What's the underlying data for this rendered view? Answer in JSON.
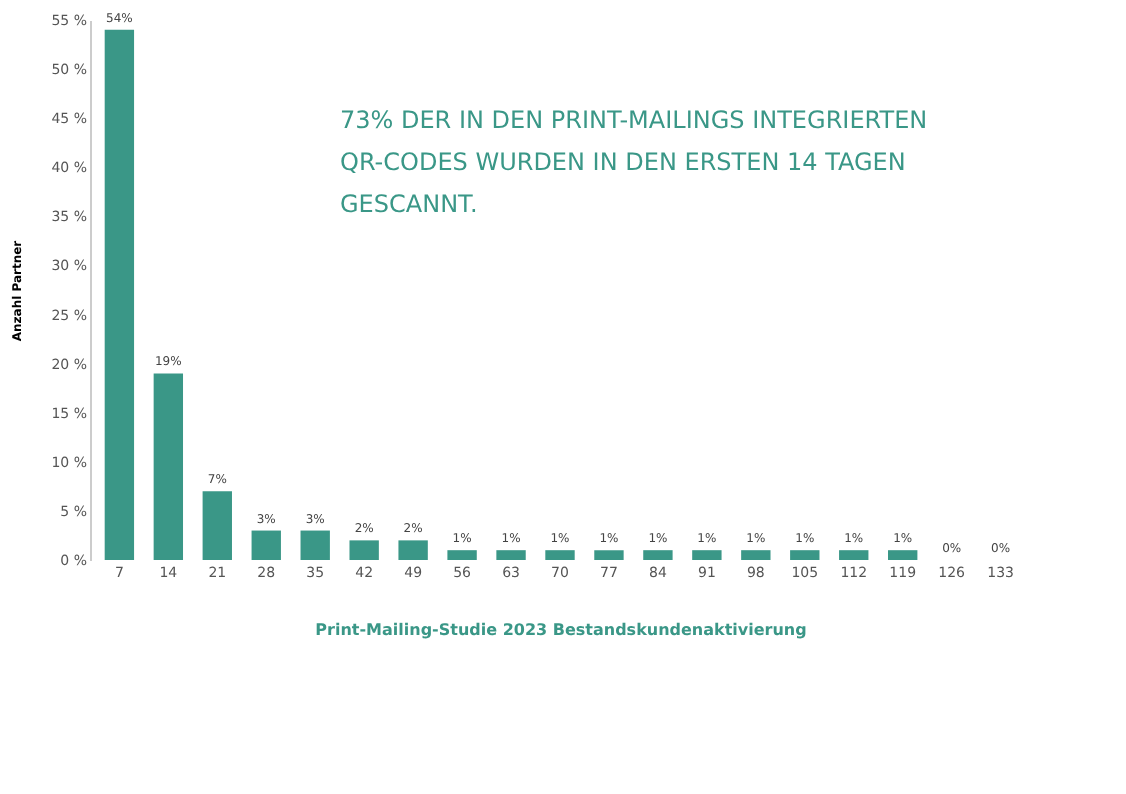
{
  "chart_data": {
    "type": "bar",
    "xlabel": "Print-Mailing-Studie 2023 Bestandskundenaktivierung",
    "ylabel": "Anzahl Partner",
    "annotations": [
      "73% DER IN DEN PRINT-MAILINGS INTEGRIERTEN\nQR-CODES WURDEN IN DEN ERSTEN 14 TAGEN\nGESCANNT."
    ],
    "categories": [
      "7",
      "14",
      "21",
      "28",
      "35",
      "42",
      "49",
      "56",
      "63",
      "70",
      "77",
      "84",
      "91",
      "98",
      "105",
      "112",
      "119",
      "126",
      "133"
    ],
    "values": [
      54,
      19,
      7,
      3,
      3,
      2,
      2,
      1,
      1,
      1,
      1,
      1,
      1,
      1,
      1,
      1,
      1,
      0,
      0
    ],
    "value_labels": [
      "54%",
      "19%",
      "7%",
      "3%",
      "3%",
      "2%",
      "2%",
      "1%",
      "1%",
      "1%",
      "1%",
      "1%",
      "1%",
      "1%",
      "1%",
      "1%",
      "1%",
      "0%",
      "0%"
    ],
    "color": "#3a9787",
    "ylim": [
      0,
      55
    ],
    "yticks": [
      {
        "value": 0,
        "label": "0 %"
      },
      {
        "value": 5,
        "label": "5 %"
      },
      {
        "value": 10,
        "label": "10 %"
      },
      {
        "value": 15,
        "label": "15 %"
      },
      {
        "value": 20,
        "label": "20 %"
      },
      {
        "value": 25,
        "label": "25 %"
      },
      {
        "value": 30,
        "label": "30 %"
      },
      {
        "value": 35,
        "label": "35 %"
      },
      {
        "value": 40,
        "label": "40 %"
      },
      {
        "value": 45,
        "label": "45 %"
      },
      {
        "value": 50,
        "label": "50 %"
      },
      {
        "value": 55,
        "label": "55 %"
      }
    ],
    "grid": false
  }
}
